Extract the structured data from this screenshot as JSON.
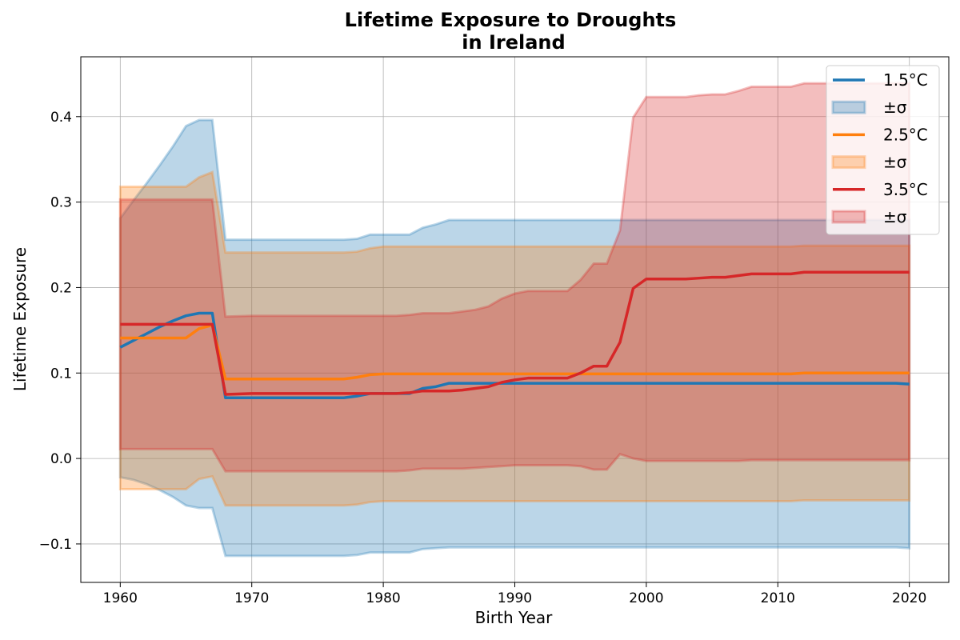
{
  "chart_data": {
    "type": "line",
    "title_line1": "Lifetime Exposure to Droughts",
    "title_line2": "in Ireland",
    "xlabel": "Birth Year",
    "ylabel": "Lifetime Exposure",
    "xlim": [
      1957,
      2023
    ],
    "ylim": [
      -0.145,
      0.47
    ],
    "xticks": [
      1960,
      1970,
      1980,
      1990,
      2000,
      2010,
      2020
    ],
    "yticks": [
      -0.1,
      0.0,
      0.1,
      0.2,
      0.3,
      0.4
    ],
    "ytick_labels": [
      "−0.1",
      "0.0",
      "0.1",
      "0.2",
      "0.3",
      "0.4"
    ],
    "grid": true,
    "legend_position": "top-right",
    "series": [
      {
        "name": "1.5°C",
        "band_label": "±σ",
        "color": "#1f77b4",
        "points": [
          [
            1960,
            0.13,
            0.281,
            -0.022
          ],
          [
            1961,
            0.138,
            0.302,
            -0.025
          ],
          [
            1962,
            0.146,
            0.322,
            -0.03
          ],
          [
            1963,
            0.154,
            0.343,
            -0.037
          ],
          [
            1964,
            0.161,
            0.365,
            -0.045
          ],
          [
            1965,
            0.167,
            0.389,
            -0.055
          ],
          [
            1966,
            0.17,
            0.396,
            -0.058
          ],
          [
            1967,
            0.17,
            0.396,
            -0.058
          ],
          [
            1968,
            0.071,
            0.256,
            -0.114
          ],
          [
            1970,
            0.071,
            0.256,
            -0.114
          ],
          [
            1977,
            0.071,
            0.256,
            -0.114
          ],
          [
            1978,
            0.073,
            0.257,
            -0.113
          ],
          [
            1979,
            0.076,
            0.262,
            -0.11
          ],
          [
            1980,
            0.076,
            0.262,
            -0.11
          ],
          [
            1982,
            0.076,
            0.262,
            -0.11
          ],
          [
            1983,
            0.082,
            0.27,
            -0.106
          ],
          [
            1984,
            0.084,
            0.274,
            -0.105
          ],
          [
            1985,
            0.088,
            0.279,
            -0.104
          ],
          [
            1990,
            0.088,
            0.279,
            -0.104
          ],
          [
            2000,
            0.088,
            0.279,
            -0.104
          ],
          [
            2010,
            0.088,
            0.279,
            -0.104
          ],
          [
            2019,
            0.088,
            0.279,
            -0.104
          ],
          [
            2020,
            0.087,
            0.279,
            -0.105
          ]
        ]
      },
      {
        "name": "2.5°C",
        "band_label": "±σ",
        "color": "#ff7f0e",
        "points": [
          [
            1960,
            0.141,
            0.318,
            -0.036
          ],
          [
            1961,
            0.141,
            0.318,
            -0.036
          ],
          [
            1965,
            0.141,
            0.318,
            -0.036
          ],
          [
            1966,
            0.152,
            0.329,
            -0.024
          ],
          [
            1967,
            0.156,
            0.335,
            -0.021
          ],
          [
            1968,
            0.093,
            0.241,
            -0.055
          ],
          [
            1970,
            0.093,
            0.241,
            -0.055
          ],
          [
            1977,
            0.093,
            0.241,
            -0.055
          ],
          [
            1978,
            0.095,
            0.242,
            -0.054
          ],
          [
            1979,
            0.098,
            0.246,
            -0.051
          ],
          [
            1980,
            0.099,
            0.248,
            -0.05
          ],
          [
            1990,
            0.099,
            0.248,
            -0.05
          ],
          [
            2000,
            0.099,
            0.248,
            -0.05
          ],
          [
            2011,
            0.099,
            0.248,
            -0.05
          ],
          [
            2012,
            0.1,
            0.249,
            -0.049
          ],
          [
            2020,
            0.1,
            0.249,
            -0.049
          ]
        ]
      },
      {
        "name": "3.5°C",
        "band_label": "±σ",
        "color": "#d62728",
        "points": [
          [
            1960,
            0.157,
            0.303,
            0.011
          ],
          [
            1965,
            0.157,
            0.303,
            0.011
          ],
          [
            1967,
            0.157,
            0.303,
            0.011
          ],
          [
            1968,
            0.075,
            0.166,
            -0.015
          ],
          [
            1970,
            0.076,
            0.167,
            -0.015
          ],
          [
            1980,
            0.076,
            0.167,
            -0.015
          ],
          [
            1981,
            0.076,
            0.167,
            -0.015
          ],
          [
            1982,
            0.077,
            0.168,
            -0.014
          ],
          [
            1983,
            0.079,
            0.17,
            -0.012
          ],
          [
            1985,
            0.079,
            0.17,
            -0.012
          ],
          [
            1986,
            0.08,
            0.172,
            -0.012
          ],
          [
            1987,
            0.082,
            0.174,
            -0.011
          ],
          [
            1988,
            0.084,
            0.178,
            -0.01
          ],
          [
            1989,
            0.089,
            0.187,
            -0.009
          ],
          [
            1990,
            0.092,
            0.193,
            -0.008
          ],
          [
            1991,
            0.094,
            0.196,
            -0.008
          ],
          [
            1994,
            0.094,
            0.196,
            -0.008
          ],
          [
            1995,
            0.1,
            0.209,
            -0.009
          ],
          [
            1996,
            0.108,
            0.228,
            -0.013
          ],
          [
            1997,
            0.108,
            0.228,
            -0.013
          ],
          [
            1998,
            0.136,
            0.267,
            0.005
          ],
          [
            1999,
            0.199,
            0.399,
            0.0
          ],
          [
            2000,
            0.21,
            0.423,
            -0.003
          ],
          [
            2003,
            0.21,
            0.423,
            -0.003
          ],
          [
            2004,
            0.211,
            0.425,
            -0.003
          ],
          [
            2005,
            0.212,
            0.426,
            -0.003
          ],
          [
            2006,
            0.212,
            0.426,
            -0.003
          ],
          [
            2007,
            0.214,
            0.43,
            -0.003
          ],
          [
            2008,
            0.216,
            0.435,
            -0.002
          ],
          [
            2011,
            0.216,
            0.435,
            -0.002
          ],
          [
            2012,
            0.218,
            0.439,
            -0.002
          ],
          [
            2020,
            0.218,
            0.439,
            -0.002
          ]
        ]
      }
    ]
  }
}
